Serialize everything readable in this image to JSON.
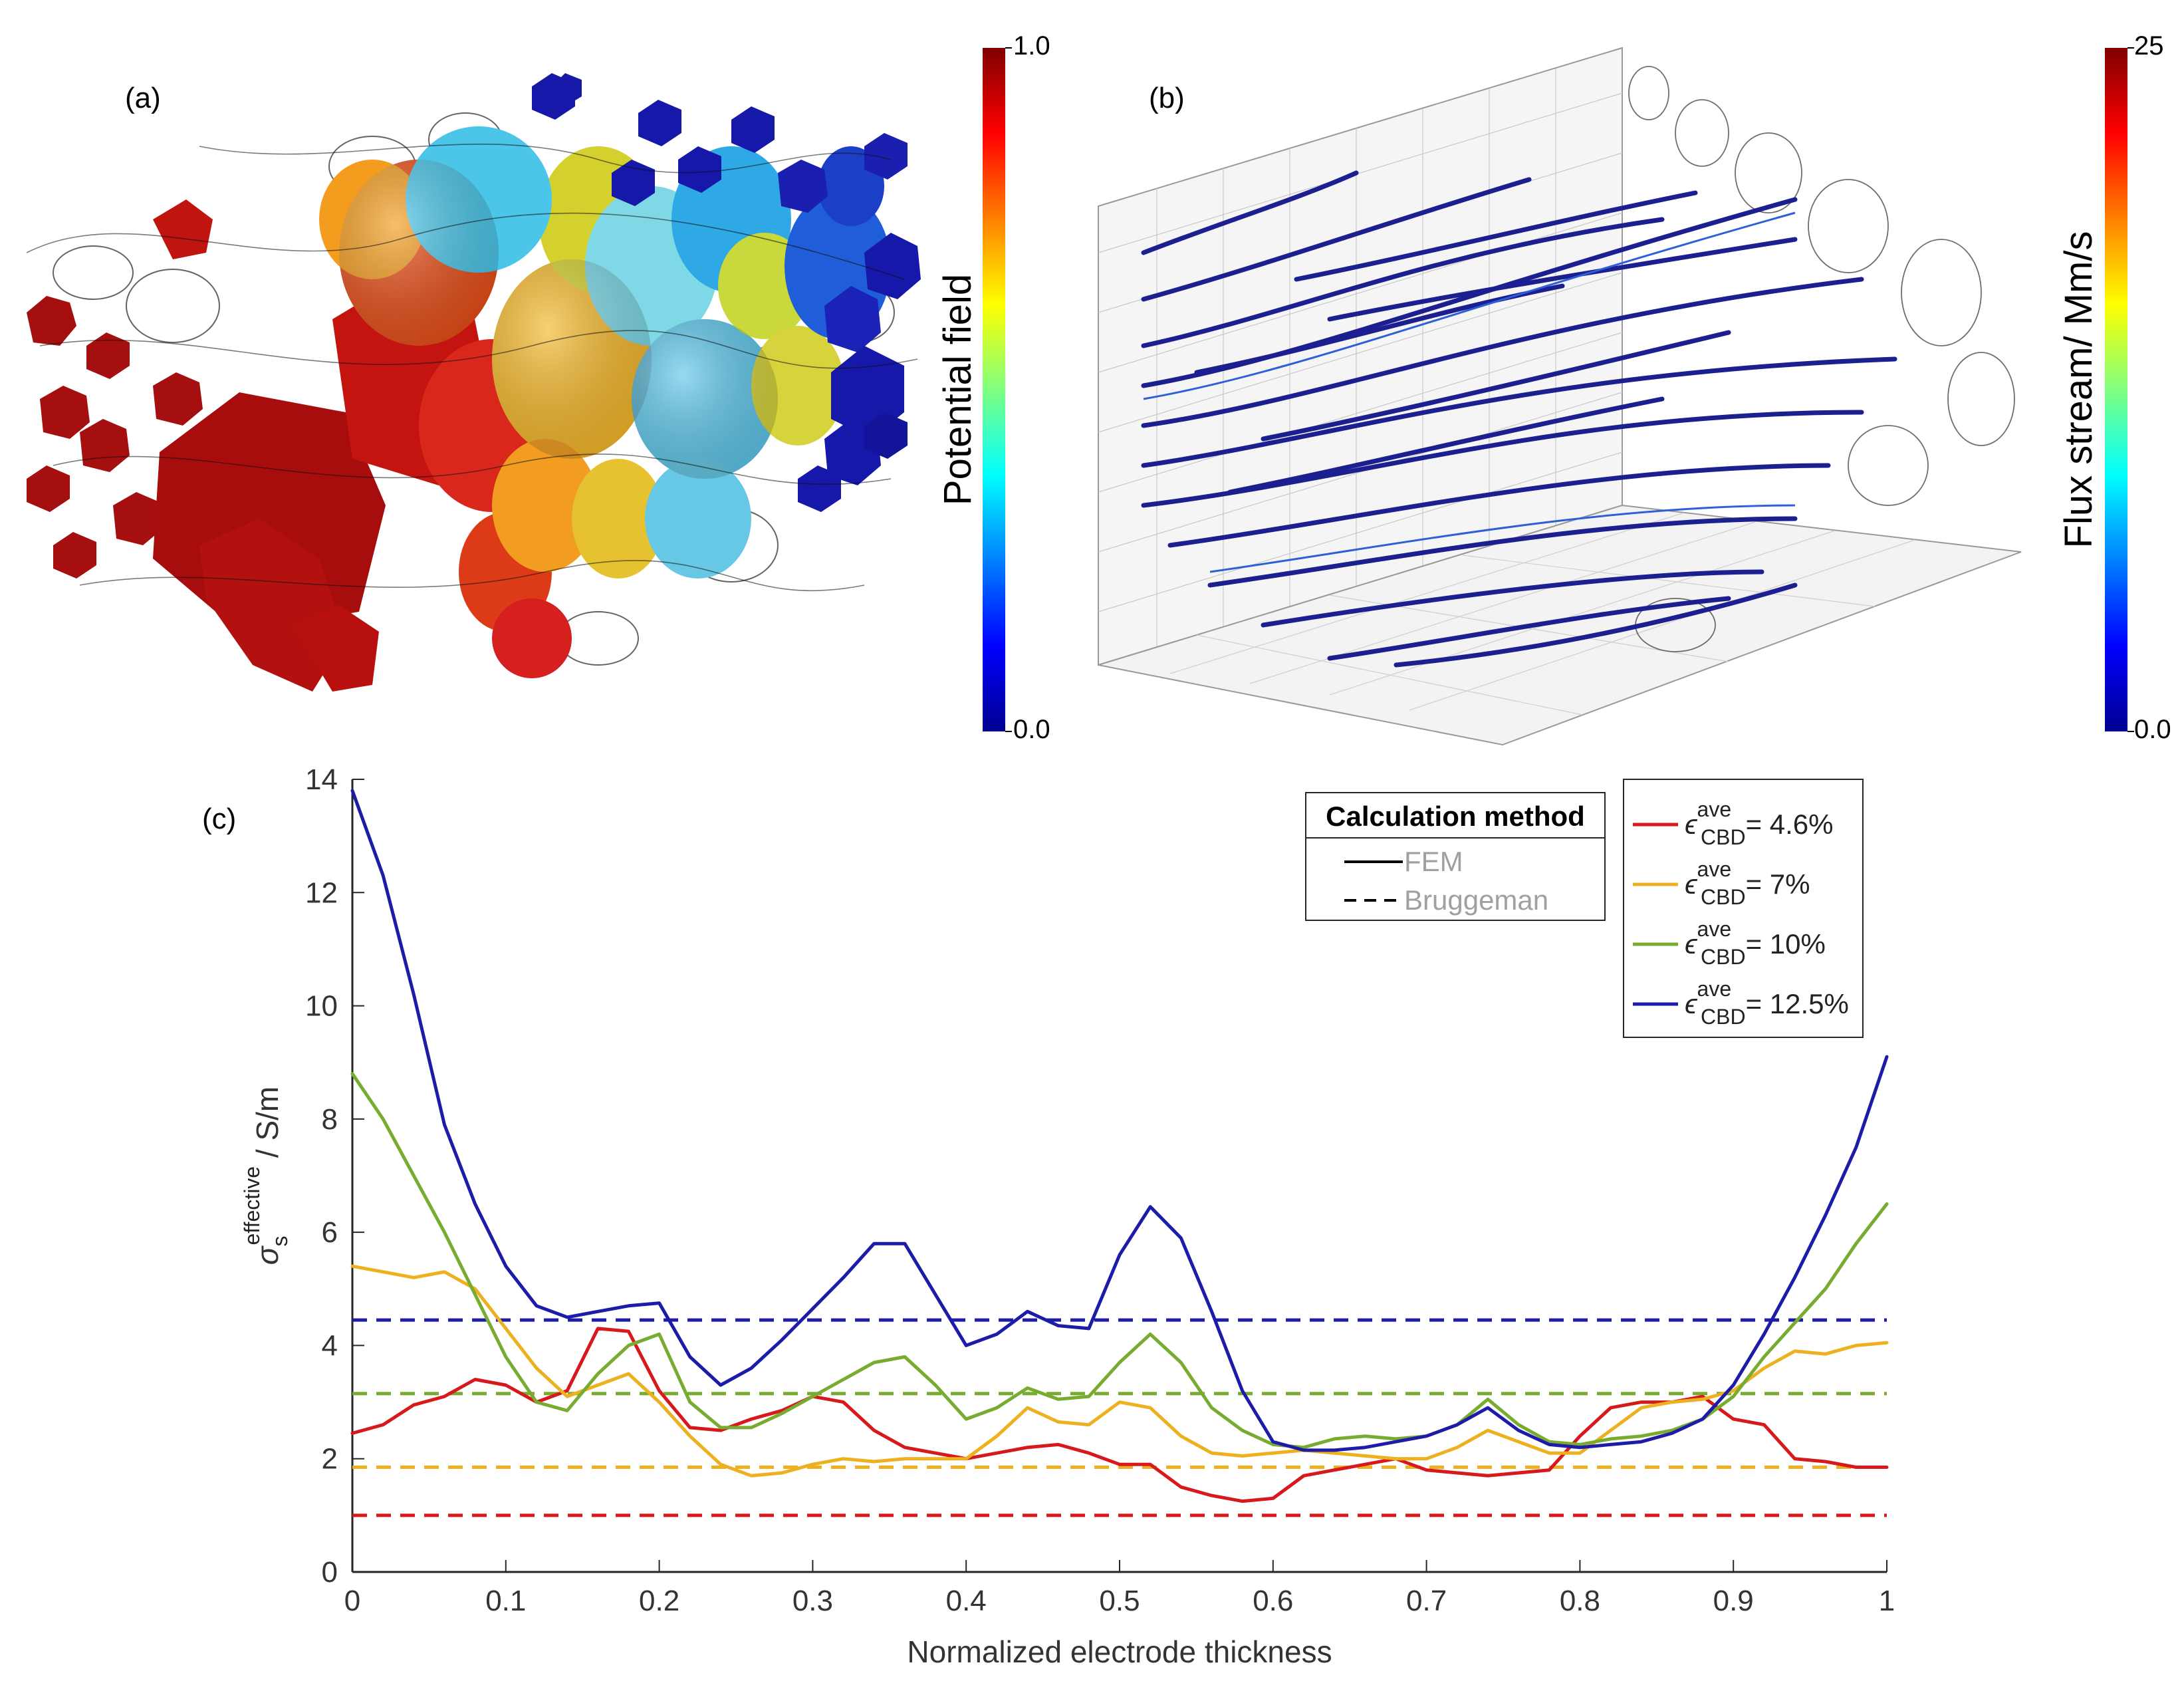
{
  "panel_a": {
    "label": "(a)",
    "colorbar": {
      "title": "Potential field",
      "max_label": "1.0",
      "min_label": "0.0"
    }
  },
  "panel_b": {
    "label": "(b)",
    "colorbar": {
      "title": "Flux stream/ Mm/s",
      "max_label": "25",
      "min_label": "0.0"
    }
  },
  "panel_c": {
    "label": "(c)"
  },
  "chart_data": {
    "type": "line",
    "title": "",
    "xlabel": "Normalized electrode thickness",
    "ylabel": {
      "symbol": "σ",
      "superscript": "effective",
      "subscript": "s",
      "unit": " / S/m"
    },
    "xlim": [
      0,
      1
    ],
    "ylim": [
      0,
      14
    ],
    "xticks": [
      "0",
      "0.1",
      "0.2",
      "0.3",
      "0.4",
      "0.5",
      "0.6",
      "0.7",
      "0.8",
      "0.9",
      "1"
    ],
    "yticks": [
      "0",
      "2",
      "4",
      "6",
      "8",
      "10",
      "12",
      "14"
    ],
    "grid": false,
    "x": [
      0,
      0.02,
      0.04,
      0.06,
      0.08,
      0.1,
      0.12,
      0.14,
      0.16,
      0.18,
      0.2,
      0.22,
      0.24,
      0.26,
      0.28,
      0.3,
      0.32,
      0.34,
      0.36,
      0.38,
      0.4,
      0.42,
      0.44,
      0.46,
      0.48,
      0.5,
      0.52,
      0.54,
      0.56,
      0.58,
      0.6,
      0.62,
      0.64,
      0.66,
      0.68,
      0.7,
      0.72,
      0.74,
      0.76,
      0.78,
      0.8,
      0.82,
      0.84,
      0.86,
      0.88,
      0.9,
      0.92,
      0.94,
      0.96,
      0.98,
      1.0
    ],
    "series": [
      {
        "name": "FEM 4.6%",
        "method": "FEM",
        "color": "#d7191c",
        "style": "solid",
        "values": [
          2.45,
          2.6,
          2.95,
          3.1,
          3.4,
          3.3,
          3.0,
          3.2,
          4.3,
          4.25,
          3.2,
          2.55,
          2.5,
          2.7,
          2.85,
          3.1,
          3.0,
          2.5,
          2.2,
          2.1,
          2.0,
          2.1,
          2.2,
          2.25,
          2.1,
          1.9,
          1.9,
          1.5,
          1.35,
          1.25,
          1.3,
          1.7,
          1.8,
          1.9,
          2.0,
          1.8,
          1.75,
          1.7,
          1.75,
          1.8,
          2.4,
          2.9,
          3.0,
          3.0,
          3.1,
          2.7,
          2.6,
          2.0,
          1.95,
          1.85,
          1.85
        ]
      },
      {
        "name": "FEM 7%",
        "method": "FEM",
        "color": "#edb120",
        "style": "solid",
        "values": [
          5.4,
          5.3,
          5.2,
          5.3,
          5.0,
          4.3,
          3.6,
          3.1,
          3.3,
          3.5,
          3.0,
          2.4,
          1.9,
          1.7,
          1.75,
          1.9,
          2.0,
          1.95,
          2.0,
          2.0,
          2.0,
          2.4,
          2.9,
          2.65,
          2.6,
          3.0,
          2.9,
          2.4,
          2.1,
          2.05,
          2.1,
          2.15,
          2.1,
          2.05,
          2.0,
          2.0,
          2.2,
          2.5,
          2.3,
          2.1,
          2.1,
          2.5,
          2.9,
          3.0,
          3.05,
          3.2,
          3.6,
          3.9,
          3.85,
          4.0,
          4.05
        ]
      },
      {
        "name": "FEM 10%",
        "method": "FEM",
        "color": "#77ac30",
        "style": "solid",
        "values": [
          8.8,
          8.0,
          7.0,
          6.0,
          4.9,
          3.8,
          3.0,
          2.85,
          3.5,
          4.0,
          4.2,
          3.0,
          2.55,
          2.55,
          2.8,
          3.1,
          3.4,
          3.7,
          3.8,
          3.3,
          2.7,
          2.9,
          3.25,
          3.05,
          3.1,
          3.7,
          4.2,
          3.7,
          2.9,
          2.5,
          2.25,
          2.2,
          2.35,
          2.4,
          2.35,
          2.4,
          2.6,
          3.05,
          2.6,
          2.3,
          2.25,
          2.35,
          2.4,
          2.5,
          2.7,
          3.1,
          3.8,
          4.4,
          5.0,
          5.8,
          6.5
        ]
      },
      {
        "name": "FEM 12.5%",
        "method": "FEM",
        "color": "#1c1ca8",
        "style": "solid",
        "values": [
          13.8,
          12.3,
          10.2,
          7.9,
          6.5,
          5.4,
          4.7,
          4.5,
          4.6,
          4.7,
          4.75,
          3.8,
          3.3,
          3.6,
          4.1,
          4.65,
          5.2,
          5.8,
          5.8,
          4.9,
          4.0,
          4.2,
          4.6,
          4.35,
          4.3,
          5.6,
          6.45,
          5.9,
          4.6,
          3.2,
          2.3,
          2.15,
          2.15,
          2.2,
          2.3,
          2.4,
          2.6,
          2.9,
          2.5,
          2.25,
          2.2,
          2.25,
          2.3,
          2.45,
          2.7,
          3.3,
          4.2,
          5.2,
          6.3,
          7.5,
          9.1
        ]
      },
      {
        "name": "Bruggeman 4.6%",
        "method": "Bruggeman",
        "color": "#d7191c",
        "style": "dashed",
        "constant": 1.0
      },
      {
        "name": "Bruggeman 7%",
        "method": "Bruggeman",
        "color": "#edb120",
        "style": "dashed",
        "constant": 1.85
      },
      {
        "name": "Bruggeman 10%",
        "method": "Bruggeman",
        "color": "#77ac30",
        "style": "dashed",
        "constant": 3.15
      },
      {
        "name": "Bruggeman 12.5%",
        "method": "Bruggeman",
        "color": "#1c1ca8",
        "style": "dashed",
        "constant": 4.45
      }
    ],
    "legend_method": {
      "title": "Calculation method",
      "entries": [
        {
          "label": "FEM",
          "style": "solid"
        },
        {
          "label": "Bruggeman",
          "style": "dashed"
        }
      ],
      "placement": "top-right"
    },
    "legend_series": {
      "placement": "top-right",
      "entries": [
        {
          "symbol": "ϵ",
          "sup": "ave",
          "sub": "CBD",
          "value": "= 4.6%",
          "color": "#d7191c"
        },
        {
          "symbol": "ϵ",
          "sup": "ave",
          "sub": "CBD",
          "value": "= 7%",
          "color": "#edb120"
        },
        {
          "symbol": "ϵ",
          "sup": "ave",
          "sub": "CBD",
          "value": "= 10%",
          "color": "#77ac30"
        },
        {
          "symbol": "ϵ",
          "sup": "ave",
          "sub": "CBD",
          "value": "= 12.5%",
          "color": "#1c1ca8"
        }
      ]
    }
  }
}
